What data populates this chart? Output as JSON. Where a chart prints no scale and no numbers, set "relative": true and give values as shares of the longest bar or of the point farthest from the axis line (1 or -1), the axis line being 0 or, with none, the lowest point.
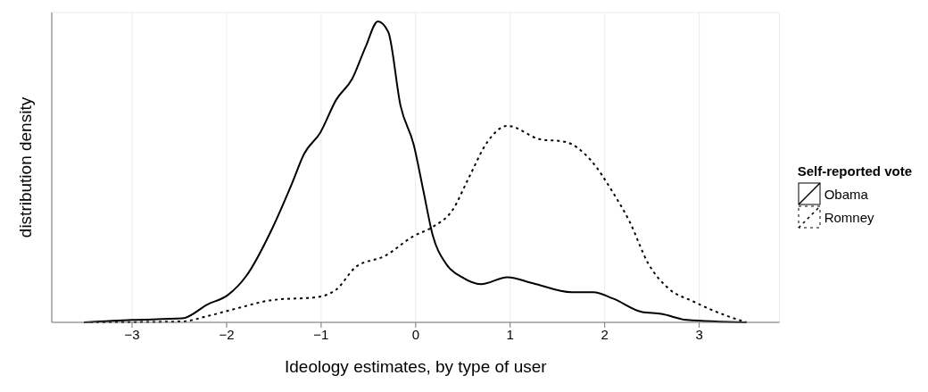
{
  "chart_data": {
    "type": "line",
    "relative": true,
    "xlabel": "Ideology estimates, by type of user",
    "ylabel": "distribution density",
    "legend_title": "Self-reported vote",
    "legend": "right",
    "grid": true,
    "marker": "none",
    "xlim": [
      -3.85,
      3.85
    ],
    "xticks": [
      {
        "value": -3,
        "label": "−3"
      },
      {
        "value": -2,
        "label": "−2"
      },
      {
        "value": -1,
        "label": "−1"
      },
      0,
      1,
      2,
      3
    ],
    "series": [
      {
        "name": "Obama",
        "color": "#000000",
        "line_style": "solid",
        "x": [
          -3.51,
          -3.0,
          -2.47,
          -2.2,
          -1.99,
          -1.79,
          -1.52,
          -1.31,
          -1.18,
          -1.01,
          -0.84,
          -0.67,
          -0.53,
          -0.4,
          -0.29,
          -0.16,
          -0.02,
          0.08,
          0.18,
          0.32,
          0.49,
          0.69,
          0.97,
          1.24,
          1.65,
          1.88,
          2.09,
          2.39,
          2.6,
          2.87,
          3.5
        ],
        "values": [
          0,
          0.008,
          0.013,
          0.06,
          0.09,
          0.155,
          0.31,
          0.46,
          0.56,
          0.63,
          0.74,
          0.81,
          0.915,
          1.0,
          0.965,
          0.72,
          0.59,
          0.44,
          0.29,
          0.195,
          0.15,
          0.127,
          0.15,
          0.13,
          0.1,
          0.1,
          0.079,
          0.035,
          0.028,
          0.008,
          0
        ]
      },
      {
        "name": "Romney",
        "color": "#000000",
        "line_style": "dotted",
        "x": [
          -3.51,
          -2.47,
          -2.2,
          -1.86,
          -1.52,
          -1.04,
          -0.84,
          -0.63,
          -0.33,
          -0.02,
          0.18,
          0.39,
          0.56,
          0.76,
          0.97,
          1.31,
          1.58,
          1.85,
          2.09,
          2.26,
          2.46,
          2.67,
          2.94,
          3.28,
          3.5
        ],
        "values": [
          0,
          0.003,
          0.021,
          0.049,
          0.074,
          0.084,
          0.109,
          0.185,
          0.22,
          0.287,
          0.317,
          0.373,
          0.479,
          0.6,
          0.653,
          0.609,
          0.6,
          0.54,
          0.43,
          0.337,
          0.196,
          0.114,
          0.069,
          0.023,
          0
        ]
      }
    ]
  }
}
